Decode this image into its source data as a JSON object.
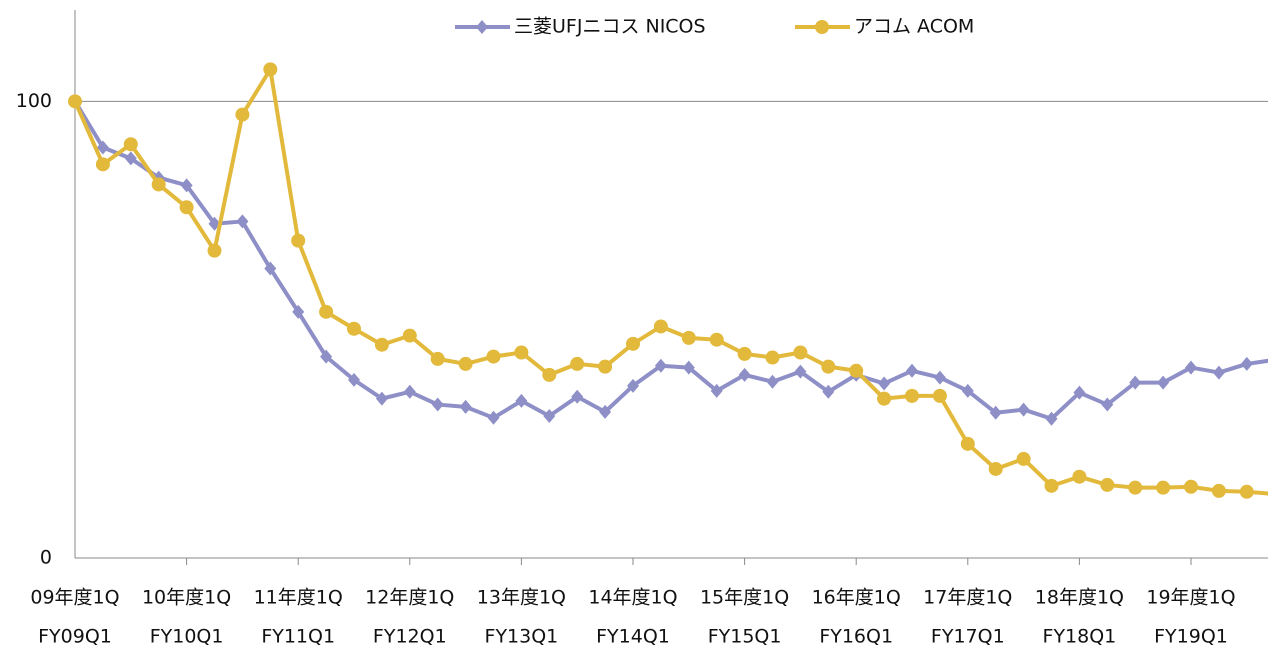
{
  "chart_data": {
    "type": "line",
    "categories": [
      "09年度1Q",
      null,
      null,
      null,
      "10年度1Q",
      null,
      null,
      null,
      "11年度1Q",
      null,
      null,
      null,
      "12年度1Q",
      null,
      null,
      null,
      "13年度1Q",
      null,
      null,
      null,
      "14年度1Q",
      null,
      null,
      null,
      "15年度1Q",
      null,
      null,
      null,
      "16年度1Q",
      null,
      null,
      null,
      "17年度1Q",
      null,
      null,
      null,
      "18年度1Q",
      null,
      null,
      null,
      "19年度1Q",
      null,
      null,
      null
    ],
    "categories_en": [
      "FY09Q1",
      null,
      null,
      null,
      "FY10Q1",
      null,
      null,
      null,
      "FY11Q1",
      null,
      null,
      null,
      "FY12Q1",
      null,
      null,
      null,
      "FY13Q1",
      null,
      null,
      null,
      "FY14Q1",
      null,
      null,
      null,
      "FY15Q1",
      null,
      null,
      null,
      "FY16Q1",
      null,
      null,
      null,
      "FY17Q1",
      null,
      null,
      null,
      "FY18Q1",
      null,
      null,
      null,
      "FY19Q1",
      null,
      null,
      null
    ],
    "series": [
      {
        "name": "三菱UFJニコス NICOS",
        "color": "#8e8fc7",
        "marker": "diamond",
        "values": [
          100,
          89.9,
          87.5,
          83.3,
          81.6,
          73.2,
          73.7,
          63.4,
          53.9,
          44.1,
          39.0,
          34.9,
          36.4,
          33.6,
          33.1,
          30.7,
          34.4,
          31.1,
          35.3,
          32.0,
          37.7,
          42.1,
          41.7,
          36.6,
          40.1,
          38.6,
          40.8,
          36.4,
          40.1,
          38.2,
          41.0,
          39.5,
          36.6,
          31.8,
          32.5,
          30.5,
          36.2,
          33.6,
          38.4,
          38.4,
          41.7,
          40.6,
          42.5,
          43.4
        ]
      },
      {
        "name": "アコム ACOM",
        "color": "#e2b93b",
        "marker": "circle",
        "values": [
          100,
          86.2,
          90.6,
          81.8,
          76.8,
          67.3,
          97.1,
          107.0,
          69.5,
          53.9,
          50.2,
          46.7,
          48.7,
          43.6,
          42.5,
          44.1,
          45.0,
          40.1,
          42.5,
          41.9,
          46.9,
          50.7,
          48.2,
          47.8,
          44.7,
          43.9,
          45.0,
          41.9,
          41.0,
          34.9,
          35.5,
          35.5,
          25.0,
          19.5,
          21.7,
          15.8,
          17.8,
          16.0,
          15.4,
          15.4,
          15.6,
          14.7,
          14.5,
          14.0
        ]
      }
    ],
    "ylim": [
      0,
      120
    ],
    "yticks": [
      0,
      100
    ],
    "grid": true
  }
}
